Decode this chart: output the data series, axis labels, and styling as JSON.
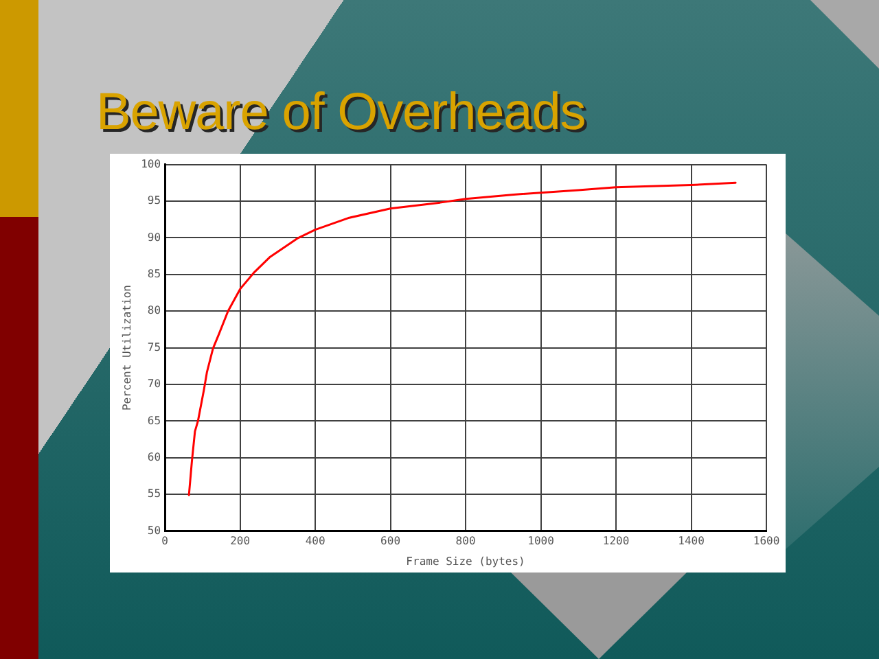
{
  "chart_data": {
    "type": "line",
    "title": "Beware of Overheads",
    "xlabel": "Frame Size (bytes)",
    "ylabel": "Percent Utilization",
    "x": [
      64,
      72,
      80,
      88,
      104,
      112,
      128,
      144,
      168,
      200,
      236,
      280,
      352,
      400,
      488,
      600,
      732,
      800,
      928,
      1100,
      1200,
      1400,
      1518
    ],
    "series": [
      {
        "color": "#ff0000",
        "values": [
          54.9,
          59.6,
          63.6,
          65.0,
          69.3,
          71.7,
          74.9,
          76.9,
          80.0,
          83.0,
          85.2,
          87.4,
          89.9,
          91.1,
          92.7,
          94.0,
          94.8,
          95.3,
          95.9,
          96.5,
          96.9,
          97.2,
          97.5
        ]
      }
    ],
    "xlim": [
      0,
      1600
    ],
    "xticks": [
      0,
      200,
      400,
      600,
      800,
      1000,
      1200,
      1400,
      1600
    ],
    "ylim": [
      50,
      100
    ],
    "yticks": [
      50,
      55,
      60,
      65,
      70,
      75,
      80,
      85,
      90,
      95,
      100
    ],
    "grid": true,
    "legend": false,
    "marker": "none",
    "line_style": "solid"
  }
}
